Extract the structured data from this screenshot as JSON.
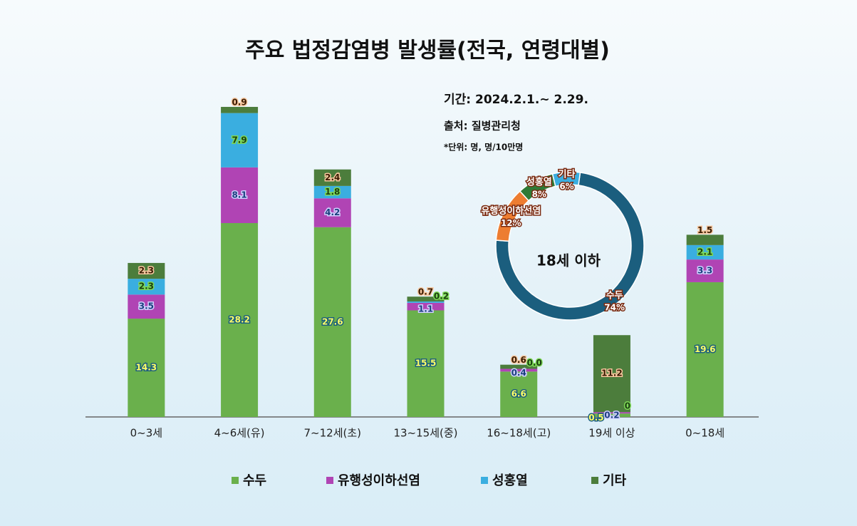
{
  "chart_data": [
    {
      "type": "bar",
      "title": "주요 법정감염병 발생률(전국, 연령대별)",
      "annotations": [
        "기간: 2024.2.1.~ 2.29.",
        "출처: 질병관리청",
        "*단위: 명, 명/10만명"
      ],
      "stacked": true,
      "categories": [
        "0~3세",
        "4~6세(유)",
        "7~12세(초)",
        "13~15세(중)",
        "16~18세(고)",
        "19세 이상",
        "0~18세"
      ],
      "series": [
        {
          "name": "수두",
          "color": "#6ab04c",
          "values": [
            14.3,
            28.2,
            27.6,
            15.5,
            6.6,
            0.5,
            19.6
          ]
        },
        {
          "name": "유행성이하선염",
          "color": "#b044b4",
          "values": [
            3.5,
            8.1,
            4.2,
            1.1,
            0.4,
            0.2,
            3.3
          ]
        },
        {
          "name": "성홍열",
          "color": "#3aaee0",
          "values": [
            2.3,
            7.9,
            1.8,
            0.2,
            0,
            0,
            2.1
          ],
          "value_labels": [
            "2.3",
            "7.9",
            "1.8",
            "0.2",
            "0.0",
            "0",
            "2.1"
          ]
        },
        {
          "name": "기타",
          "color": "#4c7d3c",
          "values": [
            2.3,
            0.9,
            2.4,
            0.7,
            0.6,
            11.2,
            1.5
          ]
        }
      ],
      "ylim": [
        0,
        48
      ],
      "legend": "bottom"
    },
    {
      "type": "pie",
      "title": "18세 이하",
      "donut": true,
      "categories": [
        "수두",
        "유행성이하선염",
        "성홍열",
        "기타"
      ],
      "values": [
        74,
        12,
        8,
        6
      ],
      "value_labels": [
        "74%",
        "12%",
        "8%",
        "6%"
      ],
      "colors": [
        "#1b5e7e",
        "#ed7d31",
        "#2f7a36",
        "#3aaee0"
      ]
    }
  ]
}
